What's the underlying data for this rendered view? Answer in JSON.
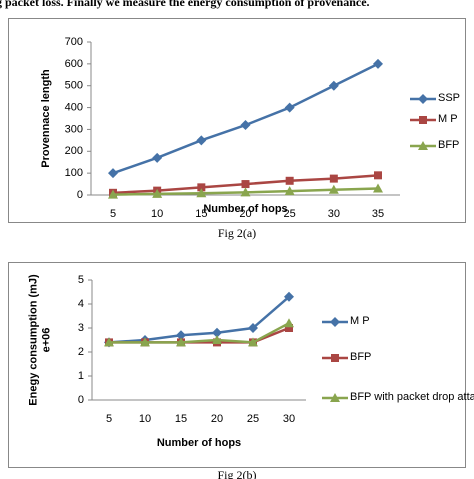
{
  "page_text": "g packet loss. Finally we measure the energy consumption of provenance.",
  "captions": [
    "Fig 2(a)",
    "Fig 2(b)"
  ],
  "chart_data": [
    {
      "type": "line",
      "xlabel": "Number of hops",
      "ylabel": [
        "Provennace length"
      ],
      "categories": [
        "5",
        "10",
        "15",
        "20",
        "25",
        "30",
        "35"
      ],
      "ylim": [
        0,
        700
      ],
      "yticks": [
        0,
        100,
        200,
        300,
        400,
        500,
        600,
        700
      ],
      "legend": "right",
      "series": [
        {
          "name": "SSP",
          "color": "#4572a7",
          "marker": "diamond",
          "values": [
            100,
            170,
            250,
            320,
            400,
            500,
            600
          ]
        },
        {
          "name": "M P",
          "color": "#aa4643",
          "marker": "square",
          "values": [
            10,
            20,
            35,
            50,
            65,
            75,
            90
          ]
        },
        {
          "name": "BFP",
          "color": "#89a54e",
          "marker": "triangle",
          "values": [
            2,
            5,
            8,
            12,
            18,
            24,
            30
          ]
        }
      ]
    },
    {
      "type": "line",
      "xlabel": "Number of hops",
      "ylabel": [
        "Enegy consumption (mJ)",
        "e+06"
      ],
      "categories": [
        "5",
        "10",
        "15",
        "20",
        "25",
        "30"
      ],
      "ylim": [
        0,
        5
      ],
      "yticks": [
        0,
        1,
        2,
        3,
        4,
        5
      ],
      "legend": "right",
      "series": [
        {
          "name": "M P",
          "color": "#4572a7",
          "marker": "diamond",
          "values": [
            2.4,
            2.5,
            2.7,
            2.8,
            3.0,
            4.3
          ]
        },
        {
          "name": "BFP",
          "color": "#aa4643",
          "marker": "square",
          "values": [
            2.4,
            2.4,
            2.4,
            2.4,
            2.4,
            3.0
          ]
        },
        {
          "name": "BFP with packet drop attack",
          "color": "#89a54e",
          "marker": "triangle",
          "values": [
            2.4,
            2.4,
            2.4,
            2.5,
            2.4,
            3.2
          ]
        }
      ]
    }
  ]
}
